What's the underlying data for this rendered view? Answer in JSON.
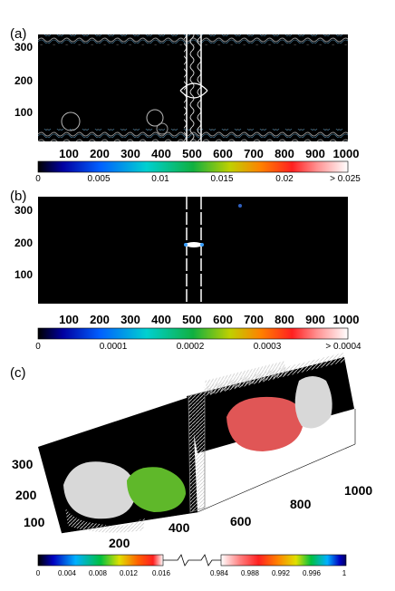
{
  "panels": {
    "a": {
      "label": "(a)",
      "y_ticks": [
        "300",
        "200",
        "100"
      ],
      "x_ticks": [
        "100",
        "200",
        "300",
        "400",
        "500",
        "600",
        "700",
        "800",
        "900",
        "1000"
      ],
      "colorbar_ticks": [
        "0",
        "0.005",
        "0.01",
        "0.015",
        "0.02",
        "> 0.025"
      ]
    },
    "b": {
      "label": "(b)",
      "y_ticks": [
        "300",
        "200",
        "100"
      ],
      "x_ticks": [
        "100",
        "200",
        "300",
        "400",
        "500",
        "600",
        "700",
        "800",
        "900",
        "1000"
      ],
      "colorbar_ticks": [
        "0",
        "0.0001",
        "0.0002",
        "0.0003",
        "> 0.0004"
      ]
    },
    "c": {
      "label": "(c)",
      "y_ticks": [
        "300",
        "200",
        "100"
      ],
      "x_ticks": [
        "200",
        "400",
        "600",
        "800",
        "1000"
      ],
      "colorbar_left_ticks": [
        "0",
        "0.004",
        "0.008",
        "0.012",
        "0.016"
      ],
      "colorbar_right_ticks": [
        "0.984",
        "0.988",
        "0.992",
        "0.996",
        "1"
      ]
    }
  },
  "colors": {
    "field_background": "#000000",
    "phase_red": "#e05656",
    "phase_green": "#5fb82a",
    "phase_white": "#d8d8d8"
  }
}
